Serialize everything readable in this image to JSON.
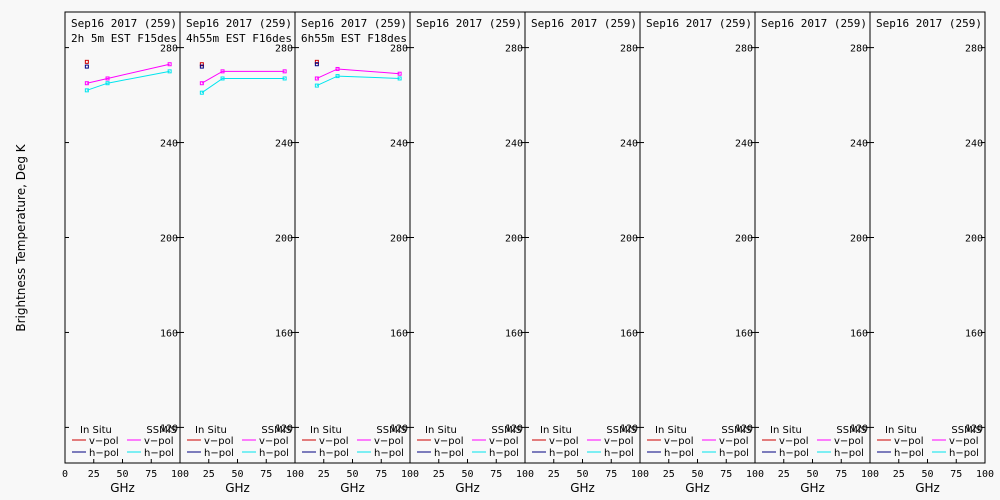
{
  "chart_data": {
    "type": "line",
    "ylabel": "Brightness Temperature, Deg K",
    "xlabel": "GHz",
    "xlim": [
      0,
      100
    ],
    "ylim": [
      105,
      295
    ],
    "x_ticks": [
      0,
      25,
      50,
      75,
      100
    ],
    "y_ticks": [
      120,
      160,
      200,
      240,
      280
    ],
    "legend": {
      "left_header": "In Situ",
      "right_header": "SSMIS",
      "vpol": "v−pol",
      "hpol": "h−pol"
    },
    "colors": {
      "insitu_v": "#cc0000",
      "insitu_h": "#000080",
      "ssmis_v": "#ff00ff",
      "ssmis_h": "#00e5ee"
    },
    "panels": [
      {
        "title": "Sep16 2017 (259)",
        "subtitle": "2h 5m  EST F15des",
        "insitu_v": [
          {
            "x": 19,
            "y": 274
          }
        ],
        "insitu_h": [
          {
            "x": 19,
            "y": 272
          }
        ],
        "ssmis_v": [
          {
            "x": 19,
            "y": 265
          },
          {
            "x": 37,
            "y": 267
          },
          {
            "x": 91,
            "y": 273
          }
        ],
        "ssmis_h": [
          {
            "x": 19,
            "y": 262
          },
          {
            "x": 37,
            "y": 265
          },
          {
            "x": 91,
            "y": 270
          }
        ]
      },
      {
        "title": "Sep16 2017 (259)",
        "subtitle": "4h55m  EST F16des",
        "insitu_v": [
          {
            "x": 19,
            "y": 273
          }
        ],
        "insitu_h": [
          {
            "x": 19,
            "y": 272
          }
        ],
        "ssmis_v": [
          {
            "x": 19,
            "y": 265
          },
          {
            "x": 37,
            "y": 270
          },
          {
            "x": 91,
            "y": 270
          }
        ],
        "ssmis_h": [
          {
            "x": 19,
            "y": 261
          },
          {
            "x": 37,
            "y": 267
          },
          {
            "x": 91,
            "y": 267
          }
        ]
      },
      {
        "title": "Sep16 2017 (259)",
        "subtitle": "6h55m  EST F18des",
        "insitu_v": [
          {
            "x": 19,
            "y": 274
          }
        ],
        "insitu_h": [
          {
            "x": 19,
            "y": 273
          }
        ],
        "ssmis_v": [
          {
            "x": 19,
            "y": 267
          },
          {
            "x": 37,
            "y": 271
          },
          {
            "x": 91,
            "y": 269
          }
        ],
        "ssmis_h": [
          {
            "x": 19,
            "y": 264
          },
          {
            "x": 37,
            "y": 268
          },
          {
            "x": 91,
            "y": 267
          }
        ]
      },
      {
        "title": "Sep16 2017 (259)",
        "subtitle": "",
        "insitu_v": [],
        "insitu_h": [],
        "ssmis_v": [],
        "ssmis_h": []
      },
      {
        "title": "Sep16 2017 (259)",
        "subtitle": "",
        "insitu_v": [],
        "insitu_h": [],
        "ssmis_v": [],
        "ssmis_h": []
      },
      {
        "title": "Sep16 2017 (259)",
        "subtitle": "",
        "insitu_v": [],
        "insitu_h": [],
        "ssmis_v": [],
        "ssmis_h": []
      },
      {
        "title": "Sep16 2017 (259)",
        "subtitle": "",
        "insitu_v": [],
        "insitu_h": [],
        "ssmis_v": [],
        "ssmis_h": []
      },
      {
        "title": "Sep16 2017 (259)",
        "subtitle": "",
        "insitu_v": [],
        "insitu_h": [],
        "ssmis_v": [],
        "ssmis_h": []
      }
    ]
  }
}
